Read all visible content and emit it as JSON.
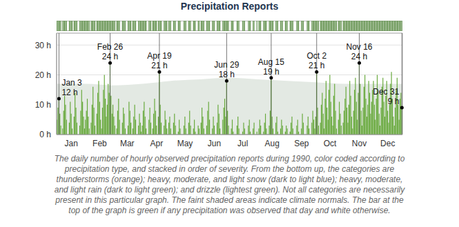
{
  "chart_data": {
    "type": "bar",
    "title": "Precipitation Reports",
    "color": "#66a83a",
    "grid": true,
    "x": [
      1,
      2,
      3,
      4,
      5,
      6,
      7,
      8,
      9,
      10,
      11,
      12,
      13,
      14,
      15,
      16,
      17,
      18,
      19,
      20,
      21,
      22,
      23,
      24,
      25,
      26,
      27,
      28,
      29,
      30,
      31,
      32,
      33,
      34,
      35,
      36,
      37,
      38,
      39,
      40,
      41,
      42,
      43,
      44,
      45,
      46,
      47,
      48,
      49,
      50,
      51,
      52,
      53,
      54,
      55,
      56,
      57,
      58,
      59,
      60,
      61,
      62,
      63,
      64,
      65,
      66,
      67,
      68,
      69,
      70,
      71,
      72,
      73,
      74,
      75,
      76,
      77,
      78,
      79,
      80,
      81,
      82,
      83,
      84,
      85,
      86,
      87,
      88,
      89,
      90,
      91,
      92,
      93,
      94,
      95,
      96,
      97,
      98,
      99,
      100,
      101,
      102,
      103,
      104,
      105,
      106,
      107,
      108,
      109,
      110,
      111,
      112,
      113,
      114,
      115,
      116,
      117,
      118,
      119,
      120,
      121,
      122,
      123,
      124,
      125,
      126,
      127,
      128,
      129,
      130,
      131,
      132,
      133,
      134,
      135,
      136,
      137,
      138,
      139,
      140,
      141,
      142,
      143,
      144,
      145,
      146,
      147,
      148,
      149,
      150,
      151,
      152,
      153,
      154,
      155,
      156,
      157,
      158,
      159,
      160,
      161,
      162,
      163,
      164,
      165,
      166,
      167,
      168,
      169,
      170,
      171,
      172,
      173,
      174,
      175,
      176,
      177,
      178,
      179,
      180,
      181,
      182,
      183,
      184,
      185,
      186,
      187,
      188,
      189,
      190,
      191,
      192,
      193,
      194,
      195,
      196,
      197,
      198,
      199,
      200,
      201,
      202,
      203,
      204,
      205,
      206,
      207,
      208,
      209,
      210,
      211,
      212,
      213,
      214,
      215,
      216,
      217,
      218,
      219,
      220,
      221,
      222,
      223,
      224,
      225,
      226,
      227,
      228,
      229,
      230,
      231,
      232,
      233,
      234,
      235,
      236,
      237,
      238,
      239,
      240,
      241,
      242,
      243,
      244,
      245,
      246,
      247,
      248,
      249,
      250,
      251,
      252,
      253,
      254,
      255,
      256,
      257,
      258,
      259,
      260,
      261,
      262,
      263,
      264,
      265,
      266,
      267,
      268,
      269,
      270,
      271,
      272,
      273,
      274,
      275,
      276,
      277,
      278,
      279,
      280,
      281,
      282,
      283,
      284,
      285,
      286,
      287,
      288,
      289,
      290,
      291,
      292,
      293,
      294,
      295,
      296,
      297,
      298,
      299,
      300,
      301,
      302,
      303,
      304,
      305,
      306,
      307,
      308,
      309,
      310,
      311,
      312,
      313,
      314,
      315,
      316,
      317,
      318,
      319,
      320,
      321,
      322,
      323,
      324,
      325,
      326,
      327,
      328,
      329,
      330,
      331,
      332,
      333,
      334,
      335,
      336,
      337,
      338,
      339,
      340,
      341,
      342,
      343,
      344,
      345,
      346,
      347,
      348,
      349,
      350,
      351,
      352,
      353,
      354,
      355,
      356,
      357,
      358,
      359,
      360,
      361,
      362,
      363,
      364,
      365
    ],
    "values": [
      5,
      9,
      12,
      7,
      3,
      0,
      2,
      8,
      13,
      10,
      5,
      0,
      0,
      4,
      11,
      7,
      2,
      0,
      6,
      14,
      9,
      4,
      0,
      0,
      3,
      8,
      15,
      11,
      6,
      2,
      5,
      8,
      12,
      6,
      2,
      0,
      4,
      10,
      16,
      9,
      3,
      0,
      7,
      14,
      18,
      11,
      5,
      2,
      9,
      15,
      20,
      12,
      6,
      10,
      17,
      14,
      24,
      13,
      7,
      10,
      6,
      3,
      0,
      2,
      8,
      12,
      5,
      0,
      0,
      4,
      9,
      7,
      2,
      0,
      0,
      3,
      11,
      8,
      4,
      0,
      2,
      6,
      10,
      5,
      0,
      0,
      3,
      7,
      4,
      1,
      3,
      8,
      11,
      6,
      2,
      0,
      0,
      5,
      9,
      4,
      0,
      2,
      7,
      12,
      8,
      3,
      0,
      6,
      21,
      10,
      4,
      0,
      0,
      3,
      8,
      5,
      2,
      0,
      4,
      6,
      2,
      0,
      0,
      4,
      7,
      3,
      0,
      0,
      1,
      5,
      2,
      0,
      0,
      0,
      3,
      6,
      2,
      0,
      0,
      4,
      8,
      3,
      0,
      0,
      2,
      5,
      1,
      0,
      0,
      3,
      2,
      0,
      4,
      9,
      6,
      2,
      0,
      0,
      3,
      8,
      11,
      5,
      0,
      0,
      2,
      6,
      3,
      0,
      0,
      4,
      10,
      7,
      2,
      0,
      0,
      5,
      9,
      12,
      6,
      18,
      8,
      3,
      0,
      0,
      2,
      5,
      1,
      0,
      0,
      0,
      3,
      6,
      2,
      0,
      0,
      0,
      1,
      4,
      2,
      0,
      0,
      0,
      3,
      5,
      1,
      0,
      0,
      2,
      4,
      0,
      0,
      1,
      0,
      2,
      5,
      3,
      0,
      0,
      1,
      4,
      7,
      2,
      0,
      0,
      3,
      8,
      19,
      6,
      2,
      0,
      0,
      4,
      6,
      1,
      0,
      0,
      2,
      5,
      3,
      0,
      0,
      1,
      3,
      2,
      0,
      0,
      1,
      4,
      6,
      2,
      0,
      0,
      0,
      3,
      5,
      1,
      0,
      0,
      2,
      7,
      4,
      0,
      0,
      0,
      3,
      6,
      2,
      0,
      0,
      4,
      8,
      5,
      2,
      6,
      21,
      9,
      3,
      0,
      4,
      10,
      14,
      7,
      2,
      12,
      18,
      9,
      5,
      15,
      20,
      11,
      6,
      3,
      13,
      17,
      8,
      2,
      0,
      5,
      11,
      7,
      3,
      0,
      4,
      8,
      12,
      16,
      9,
      4,
      10,
      18,
      13,
      6,
      2,
      8,
      15,
      19,
      11,
      5,
      14,
      24,
      17,
      8,
      3,
      9,
      16,
      20,
      12,
      6,
      10,
      18,
      14,
      7,
      11,
      15,
      18,
      10,
      5,
      12,
      20,
      14,
      7,
      3,
      9,
      16,
      19,
      11,
      6,
      13,
      18,
      8,
      4,
      10,
      17,
      21,
      12,
      6,
      3,
      9,
      15,
      19,
      10,
      5,
      12,
      14,
      9
    ],
    "xlim": [
      0.5,
      365.5
    ],
    "xticks": [
      {
        "value": 16,
        "label": "Jan"
      },
      {
        "value": 46,
        "label": "Feb"
      },
      {
        "value": 75,
        "label": "Mar"
      },
      {
        "value": 106,
        "label": "Apr"
      },
      {
        "value": 136,
        "label": "May"
      },
      {
        "value": 167,
        "label": "Jun"
      },
      {
        "value": 197,
        "label": "Jul"
      },
      {
        "value": 228,
        "label": "Aug"
      },
      {
        "value": 259,
        "label": "Sep"
      },
      {
        "value": 289,
        "label": "Oct"
      },
      {
        "value": 320,
        "label": "Nov"
      },
      {
        "value": 350,
        "label": "Dec"
      }
    ],
    "ylim": [
      0,
      34
    ],
    "yticks": [
      {
        "value": 0,
        "label": "0 h"
      },
      {
        "value": 10,
        "label": "10 h"
      },
      {
        "value": 20,
        "label": "20 h"
      },
      {
        "value": 30,
        "label": "30 h"
      }
    ],
    "normals": {
      "x": [
        1,
        32,
        60,
        91,
        121,
        152,
        182,
        213,
        244,
        274,
        305,
        335,
        365
      ],
      "values": [
        17,
        17,
        16.5,
        17,
        18,
        18.5,
        19,
        18.5,
        18,
        17.5,
        17,
        17,
        17
      ]
    },
    "annotations": [
      {
        "x": 3,
        "value": 12,
        "label": "Jan 3",
        "value_label": "12 h"
      },
      {
        "x": 57,
        "value": 24,
        "label": "Feb 26",
        "value_label": "24 h"
      },
      {
        "x": 109,
        "value": 21,
        "label": "Apr 19",
        "value_label": "21 h"
      },
      {
        "x": 180,
        "value": 18,
        "label": "Jun 29",
        "value_label": "18 h"
      },
      {
        "x": 227,
        "value": 19,
        "label": "Aug 15",
        "value_label": "19 h"
      },
      {
        "x": 275,
        "value": 21,
        "label": "Oct 2",
        "value_label": "21 h"
      },
      {
        "x": 320,
        "value": 24,
        "label": "Nov 16",
        "value_label": "24 h"
      },
      {
        "x": 365,
        "value": 9,
        "label": "Dec 31",
        "value_label": "9 h"
      }
    ],
    "caption": [
      "The daily number of hourly observed precipitation reports during 1990, color coded according to",
      "precipitation type, and stacked in order of severity. From the bottom up, the categories are",
      "thunderstorms (orange); heavy, moderate, and light snow (dark to light blue); heavy, moderate,",
      "and light rain (dark to light green); and drizzle (lightest green). Not all categories are necessarily",
      "present in this particular graph. The faint shaded areas indicate climate normals. The bar at the",
      "top of the graph is green if any precipitation was observed that day and white otherwise."
    ]
  }
}
